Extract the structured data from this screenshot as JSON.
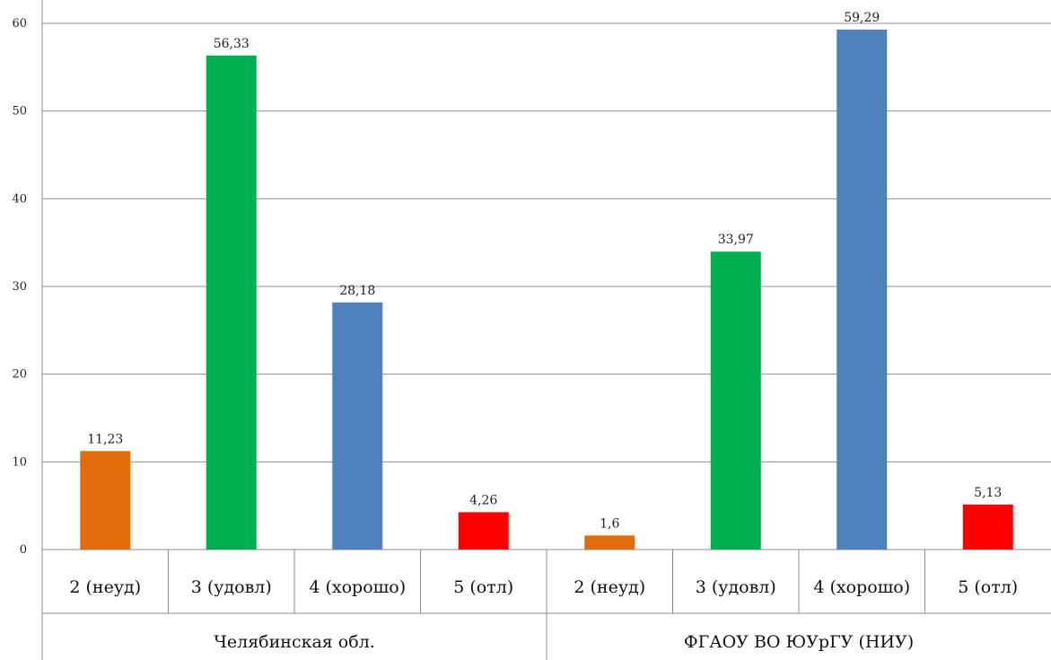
{
  "chart_data": {
    "type": "bar",
    "title": "",
    "xlabel": "",
    "ylabel": "",
    "ylim": [
      0,
      60
    ],
    "yticks": [
      0,
      10,
      20,
      30,
      40,
      50,
      60
    ],
    "grid": true,
    "groups": [
      {
        "label": "Челябинская обл.",
        "categories": [
          "2 (неуд)",
          "3 (удовл)",
          "4 (хорошо)",
          "5 (отл)"
        ],
        "values": [
          11.23,
          56.33,
          28.18,
          4.26
        ],
        "value_labels": [
          "11,23",
          "56,33",
          "28,18",
          "4,26"
        ]
      },
      {
        "label": "ФГАОУ ВО ЮУрГУ (НИУ)",
        "categories": [
          "2 (неуд)",
          "3 (удовл)",
          "4 (хорошо)",
          "5 (отл)"
        ],
        "values": [
          1.6,
          33.97,
          59.29,
          5.13
        ],
        "value_labels": [
          "1,6",
          "33,97",
          "59,29",
          "5,13"
        ]
      }
    ],
    "colors": [
      "#E36C0A",
      "#00B050",
      "#4F81BD",
      "#FF0000"
    ]
  }
}
